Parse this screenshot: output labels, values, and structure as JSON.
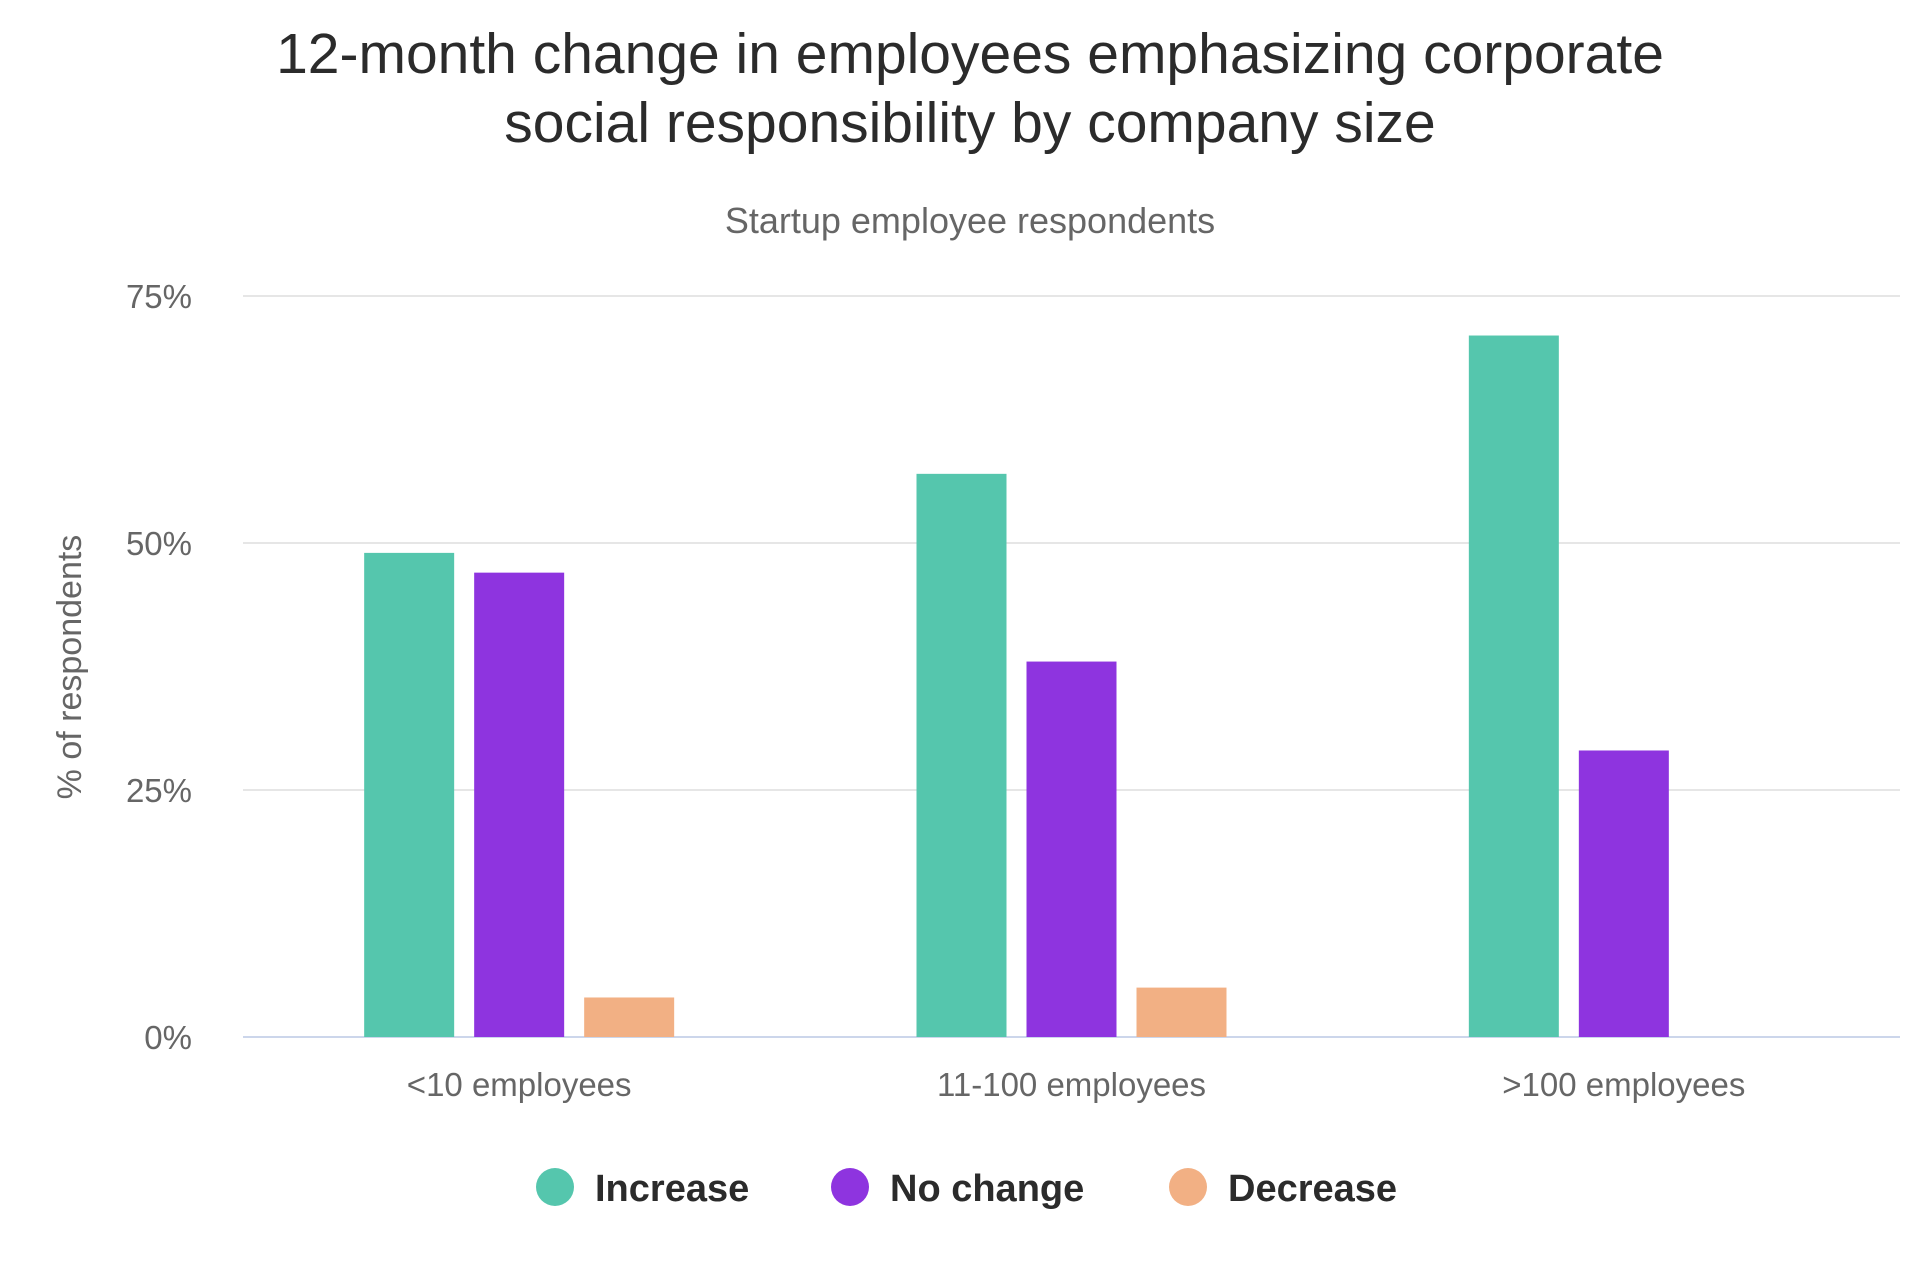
{
  "chart_data": {
    "type": "bar",
    "title_lines": [
      "12-month change in employees emphasizing corporate",
      "social responsibility by company size"
    ],
    "subtitle": "Startup employee respondents",
    "ylabel": "% of respondents",
    "ylim": [
      0,
      75
    ],
    "yticks": [
      0,
      25,
      50,
      75
    ],
    "ytick_labels": [
      "0%",
      "25%",
      "50%",
      "75%"
    ],
    "categories": [
      "<10 employees",
      "11-100 employees",
      ">100 employees"
    ],
    "series": [
      {
        "name": "Increase",
        "color": "#55c6ad",
        "values": [
          49,
          57,
          71
        ]
      },
      {
        "name": "No change",
        "color": "#8e34df",
        "values": [
          47,
          38,
          29
        ]
      },
      {
        "name": "Decrease",
        "color": "#f2b084",
        "values": [
          4,
          5,
          0
        ]
      }
    ],
    "grid": true,
    "legend_position": "bottom-center"
  }
}
